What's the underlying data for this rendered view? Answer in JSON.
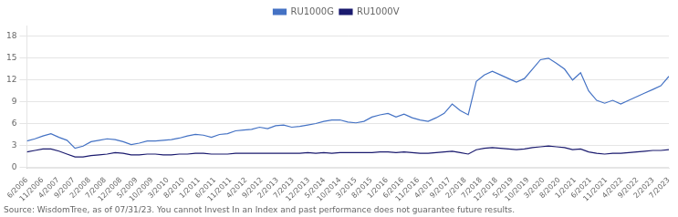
{
  "chart_data": {
    "type": "line",
    "series": [
      {
        "name": "RU1000G",
        "color": "#4472c4",
        "values": [
          3.6,
          3.9,
          4.3,
          4.6,
          4.1,
          3.7,
          2.6,
          2.9,
          3.5,
          3.7,
          3.9,
          3.8,
          3.5,
          3.1,
          3.3,
          3.6,
          3.6,
          3.7,
          3.8,
          4.0,
          4.3,
          4.5,
          4.4,
          4.1,
          4.5,
          4.6,
          5.0,
          5.1,
          5.2,
          5.5,
          5.3,
          5.7,
          5.8,
          5.5,
          5.6,
          5.8,
          6.0,
          6.3,
          6.5,
          6.5,
          6.2,
          6.1,
          6.3,
          6.9,
          7.2,
          7.4,
          6.9,
          7.3,
          6.8,
          6.5,
          6.3,
          6.8,
          7.4,
          8.7,
          7.8,
          7.2,
          11.8,
          12.7,
          13.2,
          12.7,
          12.2,
          11.7,
          12.2,
          13.5,
          14.8,
          15.0,
          14.3,
          13.5,
          12.0,
          13.0,
          10.5,
          9.2,
          8.8,
          9.2,
          8.7,
          9.2,
          9.7,
          10.2,
          10.7,
          11.2,
          12.5
        ]
      },
      {
        "name": "RU1000V",
        "color": "#1a1a6e",
        "values": [
          2.1,
          2.3,
          2.5,
          2.5,
          2.2,
          1.8,
          1.4,
          1.4,
          1.6,
          1.7,
          1.8,
          2.0,
          1.9,
          1.7,
          1.7,
          1.8,
          1.8,
          1.7,
          1.7,
          1.8,
          1.8,
          1.9,
          1.9,
          1.8,
          1.8,
          1.8,
          1.9,
          1.9,
          1.9,
          1.9,
          1.9,
          1.9,
          1.9,
          1.9,
          1.9,
          2.0,
          1.9,
          2.0,
          1.9,
          2.0,
          2.0,
          2.0,
          2.0,
          2.0,
          2.1,
          2.1,
          2.0,
          2.1,
          2.0,
          1.9,
          1.9,
          2.0,
          2.1,
          2.2,
          2.0,
          1.8,
          2.4,
          2.6,
          2.7,
          2.6,
          2.5,
          2.4,
          2.5,
          2.7,
          2.8,
          2.9,
          2.8,
          2.7,
          2.4,
          2.5,
          2.1,
          1.9,
          1.8,
          1.9,
          1.9,
          2.0,
          2.1,
          2.2,
          2.3,
          2.3,
          2.4
        ]
      }
    ],
    "xticks": [
      "6/2006",
      "11/2006",
      "4/2007",
      "9/2007",
      "2/2008",
      "7/2008",
      "12/2008",
      "5/2009",
      "10/2009",
      "3/2010",
      "8/2010",
      "1/2011",
      "6/2011",
      "11/2011",
      "4/2012",
      "9/2012",
      "2/2013",
      "7/2013",
      "12/2013",
      "5/2014",
      "10/2014",
      "3/2015",
      "8/2015",
      "1/2016",
      "6/2016",
      "11/2016",
      "4/2017",
      "9/2017",
      "2/2018",
      "7/2018",
      "12/2018",
      "5/2019",
      "10/2019",
      "3/2020",
      "8/2020",
      "1/2021",
      "6/2021",
      "11/2021",
      "4/2022",
      "9/2022",
      "2/2023",
      "7/2023"
    ],
    "ylim": [
      -0.2,
      19.5
    ],
    "yticks": [
      0,
      3,
      6,
      9,
      12,
      15,
      18
    ],
    "grid": true,
    "legend": "top",
    "annotations": [
      "Source: WisdomTree, as of 07/31/23. You cannot Invest In an Index and past performance does not guarantee future results."
    ]
  }
}
